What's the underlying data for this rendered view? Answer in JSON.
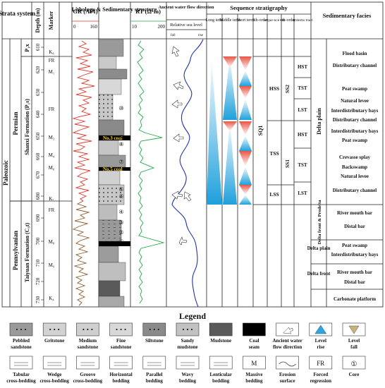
{
  "header": {
    "strata_system": "Strata system",
    "depth": "Depth (m)",
    "marker": "Marker",
    "gr": "GR (API)",
    "gr_min": "0",
    "gr_max": "160",
    "lithology": "Lithology & Sedimentary structure",
    "rt": "RT (Ω·m)",
    "rt_min": "10",
    "rt_max": "200",
    "flow": "Ancient water flow direction",
    "sea_level": "Relative sea level",
    "fall": "fall",
    "rise": "rise",
    "sequence": "Sequence stratigraphy",
    "long_term": "Long term",
    "middle_term": "Middle term",
    "short_term": "Short term",
    "third_order": "3th-order",
    "sequence_set": "seque-nce set",
    "fourth_order": "4th-order",
    "systems_tract": "systems tract",
    "facies": "Sedimentary facies"
  },
  "strata": {
    "erathem": "Paleozoic",
    "permian": "Permian",
    "pennsylvanian": "Pennsylvanian",
    "shanxi": "Shanxi Formation (P₁s)",
    "taiyuan": "Taiyuan Formation (C₃t)",
    "p1x": "P₁x"
  },
  "depth_ticks": [
    "610",
    "620",
    "630",
    "640",
    "650",
    "660",
    "670",
    "680",
    "690",
    "700",
    "710",
    "720",
    "730"
  ],
  "markers": [
    "K₈",
    "FR",
    "M₁",
    "FR",
    "M₃",
    "M₄",
    "M₆",
    "K₇",
    "FR",
    "M₈",
    "M₉",
    "K₄"
  ],
  "coal_labels": [
    "No.3 coal",
    "No.5 coal"
  ],
  "cores": [
    "⑩",
    "⑨",
    "⑧",
    "⑦",
    "⑥",
    "⑤",
    "④",
    "③",
    "②",
    "①"
  ],
  "sequence": {
    "sq": "SQ1",
    "hss": "HSS",
    "tss": "TSS",
    "lss": "LSS",
    "ss2": "SS2",
    "ss1": "SS1",
    "tracts": [
      "HST",
      "TST",
      "LST",
      "HST",
      "TST",
      "LST"
    ]
  },
  "facies": {
    "delta_plain": "Delta plain",
    "delta_front_prodelta": "Delta front & Prodelta",
    "delta_plain2": "Delta plain",
    "delta_front": "Delta front",
    "subfacies": [
      "Flood basin",
      "Distributary channel",
      "Peat swamp",
      "Natural levee",
      "Interdistributary bays",
      "Distributary channel",
      "Interdistributary bays",
      "Peat swamp",
      "Crevasse splay",
      "Backswamp",
      "Natural levee",
      "Distributary channel",
      "River mouth bar",
      "Distal bar",
      "Peat swamp",
      "Interdistributary bays",
      "River mouth bar",
      "Distal bar",
      "Carbonate platform"
    ]
  },
  "legend": {
    "title": "Legend",
    "row1": [
      "Pebbled sandstone",
      "Gritstone",
      "Medium sandstone",
      "Fine sandstone",
      "Siltstone",
      "Sandy mudstone",
      "Mudstone",
      "Coal seam",
      "Ancient water flow direction",
      "Level rise",
      "Level fall"
    ],
    "row2": [
      "Tabular cross-bedding",
      "Wedge cross-bedding",
      "Groove cross-bedding",
      "Horizontal bedding",
      "Parallel bedding",
      "Wavy bedding",
      "Lenticular bedding",
      "Massive bedding",
      "Erosion surface",
      "Forced regression",
      "Core"
    ],
    "m_symbol": "M",
    "fr_symbol": "FR",
    "core_symbol": "①"
  },
  "colors": {
    "gr_curve": "#e0342c",
    "gr_curve_lower": "#8b5a2b",
    "rt_curve": "#22a84a",
    "sea_curve": "#2233aa",
    "rise_fill": "#2aa7e0",
    "fall_fill": "#e65a4a",
    "coal": "#000000",
    "coal_label": "#ffd400"
  }
}
